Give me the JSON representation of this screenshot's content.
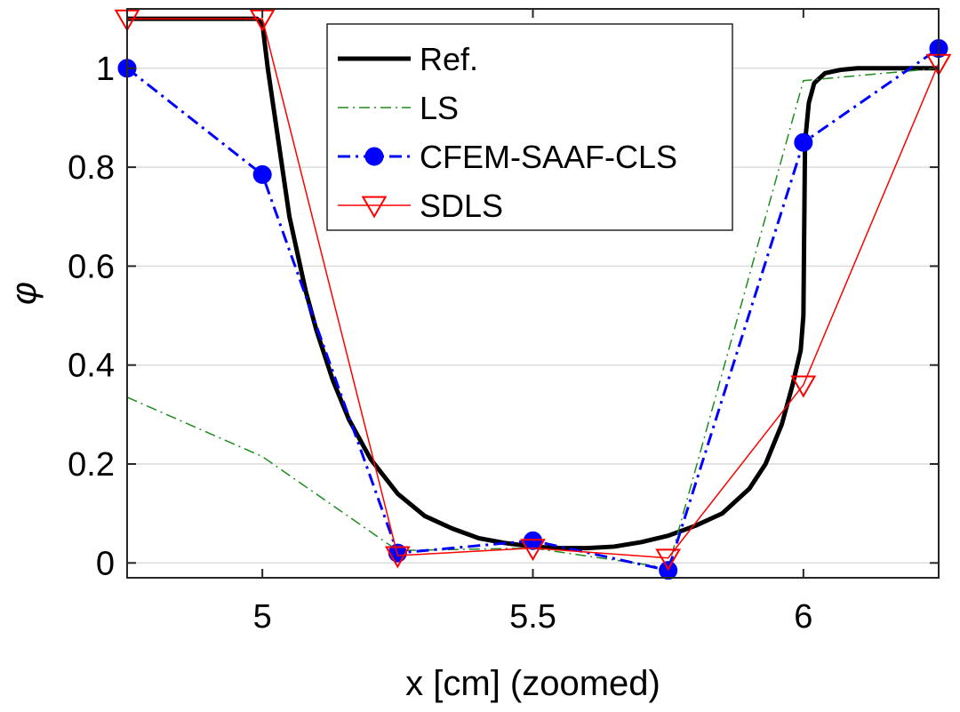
{
  "chart_data": {
    "type": "line",
    "title": "",
    "xlabel": "x [cm] (zoomed)",
    "ylabel": "φ",
    "xlim": [
      4.75,
      6.25
    ],
    "ylim": [
      -0.03,
      1.12
    ],
    "grid": "horizontal",
    "legend_position": "top-center",
    "xticks": [
      5,
      5.5,
      6
    ],
    "xtick_labels": [
      "5",
      "5.5",
      "6"
    ],
    "yticks": [
      0,
      0.2,
      0.4,
      0.6,
      0.8,
      1
    ],
    "ytick_labels": [
      "0",
      "0.2",
      "0.4",
      "0.6",
      "0.8",
      "1"
    ],
    "series": [
      {
        "name": "Ref.",
        "color": "#000000",
        "style": "solid",
        "marker": "none",
        "x": [
          4.75,
          4.99,
          5.0,
          5.01,
          5.03,
          5.05,
          5.08,
          5.1,
          5.13,
          5.16,
          5.2,
          5.25,
          5.3,
          5.35,
          5.4,
          5.45,
          5.5,
          5.55,
          5.6,
          5.65,
          5.7,
          5.75,
          5.8,
          5.85,
          5.9,
          5.93,
          5.96,
          5.98,
          5.995,
          6.0,
          6.003,
          6.01,
          6.02,
          6.04,
          6.07,
          6.1,
          6.15,
          6.25
        ],
        "y": [
          1.1,
          1.1,
          1.09,
          1.0,
          0.85,
          0.7,
          0.55,
          0.47,
          0.37,
          0.29,
          0.21,
          0.14,
          0.095,
          0.07,
          0.05,
          0.04,
          0.033,
          0.03,
          0.03,
          0.033,
          0.042,
          0.055,
          0.075,
          0.1,
          0.15,
          0.2,
          0.28,
          0.36,
          0.43,
          0.5,
          0.85,
          0.93,
          0.97,
          0.99,
          0.997,
          1.0,
          1.0,
          1.0
        ]
      },
      {
        "name": "LS",
        "color": "#1f8a1f",
        "style": "dash-dot",
        "marker": "none",
        "x": [
          4.75,
          5.0,
          5.25,
          5.5,
          5.75,
          6.0,
          6.25
        ],
        "y": [
          0.335,
          0.215,
          0.025,
          0.03,
          -0.01,
          0.975,
          1.0
        ]
      },
      {
        "name": "CFEM-SAAF-CLS",
        "color": "#0000ff",
        "style": "dash-dot",
        "marker": "circle",
        "x": [
          4.75,
          5.0,
          5.25,
          5.5,
          5.75,
          6.0,
          6.25
        ],
        "y": [
          1.0,
          0.785,
          0.02,
          0.045,
          -0.015,
          0.85,
          1.04
        ]
      },
      {
        "name": "SDLS",
        "color": "#ff0000",
        "style": "solid",
        "marker": "triangle-down",
        "x": [
          4.75,
          5.0,
          5.25,
          5.5,
          5.75,
          6.0,
          6.25
        ],
        "y": [
          1.1,
          1.1,
          0.015,
          0.03,
          0.01,
          0.36,
          1.01
        ]
      }
    ]
  }
}
